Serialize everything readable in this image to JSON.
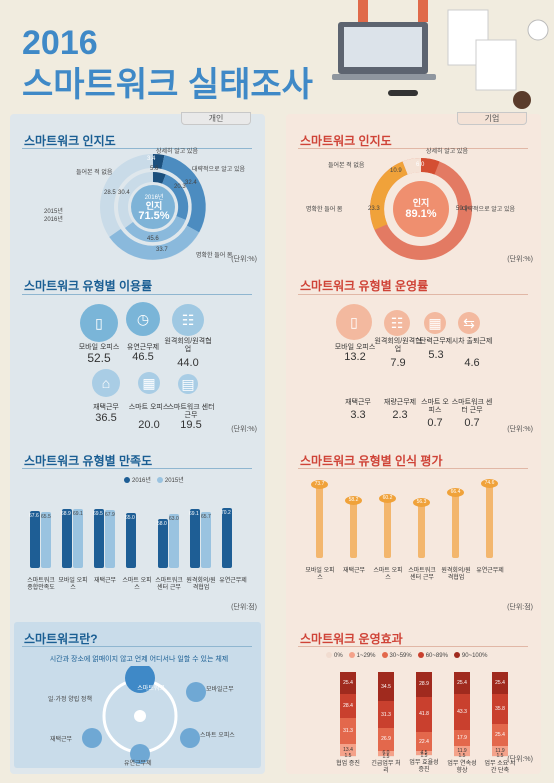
{
  "title": {
    "year": "2016",
    "subtitle": "스마트워크 실태조사"
  },
  "left": {
    "tag": "개인",
    "awareness": {
      "title": "스마트워크 인지도",
      "center_year": "2016년",
      "center_label": "인지",
      "center_value": "71.5%",
      "labels": {
        "detailed": "상세히 알고 있음",
        "general": "대략적으로 알고 있음",
        "vague": "명확한 들어 봄",
        "never": "들어본 적 없음",
        "y2015": "2015년",
        "y2016": "2016년"
      },
      "nums": {
        "a2016": "5.6",
        "b2016": "20.3",
        "c2016": "45.6",
        "d2016": "28.5",
        "a2015": "3.4",
        "b2015": "32.4",
        "c2015": "33.7",
        "d2015": "30.4"
      },
      "unit": "(단위:%)"
    },
    "usage": {
      "title": "스마트워크 유형별 이용률",
      "unit": "(단위:%)",
      "items": [
        {
          "label": "모바일 오피스",
          "value": "52.5"
        },
        {
          "label": "유연근무제",
          "value": "46.5"
        },
        {
          "label": "원격회의/원격협업",
          "value": "44.0"
        },
        {
          "label": "재택근무",
          "value": "36.5"
        },
        {
          "label": "스마트 오피스",
          "value": "20.0"
        },
        {
          "label": "스마트워크 센터 근무",
          "value": "19.5"
        }
      ]
    },
    "satisfaction": {
      "title": "스마트워크 유형별 만족도",
      "legend": [
        "2016년",
        "2015년"
      ],
      "unit": "(단위:점)",
      "items": [
        {
          "label": "스마트워크 종합만족도",
          "v2016": "67.6",
          "v2015": "65.5"
        },
        {
          "label": "모바일 오피스",
          "v2016": "68.9",
          "v2015": "69.1"
        },
        {
          "label": "재택근무",
          "v2016": "69.5",
          "v2015": "67.9"
        },
        {
          "label": "스마트 오피스",
          "v2016": "65.0",
          "v2015": ""
        },
        {
          "label": "스마트워크 센터 근무",
          "v2016": "58.0",
          "v2015": "63.0"
        },
        {
          "label": "원격회의/원격협업",
          "v2016": "69.1",
          "v2015": "65.7"
        },
        {
          "label": "유연근무제",
          "v2016": "70.2",
          "v2015": ""
        }
      ]
    },
    "what": {
      "title": "스마트워크란?",
      "desc": "시간과 장소에 얽매이지 않고 언제 어디서나 일할 수 있는 체제",
      "center": "스마트워크",
      "nodes": [
        "모바일근무",
        "스마트 오피스",
        "유연근무제",
        "재택근무",
        "일·가정 양립 정책"
      ]
    }
  },
  "right": {
    "tag": "기업",
    "awareness": {
      "title": "스마트워크 인지도",
      "center_label": "인지",
      "center_value": "89.1%",
      "labels": {
        "detailed": "상세히 알고 있음",
        "general": "대략적으로 알고 있음",
        "vague": "명확한 들어 봄",
        "never": "들어본 적 없음"
      },
      "nums": {
        "a": "6.0",
        "b": "59.9",
        "c": "23.3",
        "d": "10.9"
      },
      "unit": "(단위:%)"
    },
    "operation": {
      "title": "스마트워크 유형별 운영률",
      "unit": "(단위:%)",
      "items": [
        {
          "label": "모바일 오피스",
          "value": "13.2"
        },
        {
          "label": "원격회의/원격협업",
          "value": "7.9"
        },
        {
          "label": "탄력근무제",
          "value": "5.3"
        },
        {
          "label": "시차 출퇴근제",
          "value": "4.6"
        },
        {
          "label": "재택근무",
          "value": "3.3"
        },
        {
          "label": "재량근무제",
          "value": "2.3"
        },
        {
          "label": "스마트 오피스",
          "value": "0.7"
        },
        {
          "label": "스마트워크 센터 근무",
          "value": "0.7"
        }
      ]
    },
    "perception": {
      "title": "스마트워크 유형별 인식 평가",
      "unit": "(단위:점)",
      "items": [
        {
          "label": "모바일 오피스",
          "value": "73.7"
        },
        {
          "label": "재택근무",
          "value": "58.2"
        },
        {
          "label": "스마트 오피스",
          "value": "60.2"
        },
        {
          "label": "스마트워크 센터 근무",
          "value": "56.3"
        },
        {
          "label": "원격회의/원격협업",
          "value": "66.4"
        },
        {
          "label": "유연근무제",
          "value": "74.6"
        }
      ]
    },
    "effect": {
      "title": "스마트워크 운영효과",
      "unit": "(단위:%)",
      "legend": [
        "0%",
        "1~29%",
        "30~59%",
        "60~89%",
        "90~100%"
      ],
      "items": [
        {
          "label": "협업 증진",
          "vals": [
            "25.4",
            "28.4",
            "31.3",
            "13.4",
            "1.5"
          ]
        },
        {
          "label": "긴급업무 처리",
          "vals": [
            "34.5",
            "31.3",
            "26.9",
            "6.0",
            "1.5"
          ]
        },
        {
          "label": "업무 효율성 증진",
          "vals": [
            "28.9",
            "41.8",
            "22.4",
            "4.5",
            "1.5"
          ]
        },
        {
          "label": "업무 연속성 향상",
          "vals": [
            "25.4",
            "43.3",
            "17.9",
            "11.9",
            "1.5"
          ]
        },
        {
          "label": "업무 소요 시간 단축",
          "vals": [
            "25.4",
            "35.8",
            "25.4",
            "11.9",
            "1.5"
          ]
        }
      ]
    }
  }
}
